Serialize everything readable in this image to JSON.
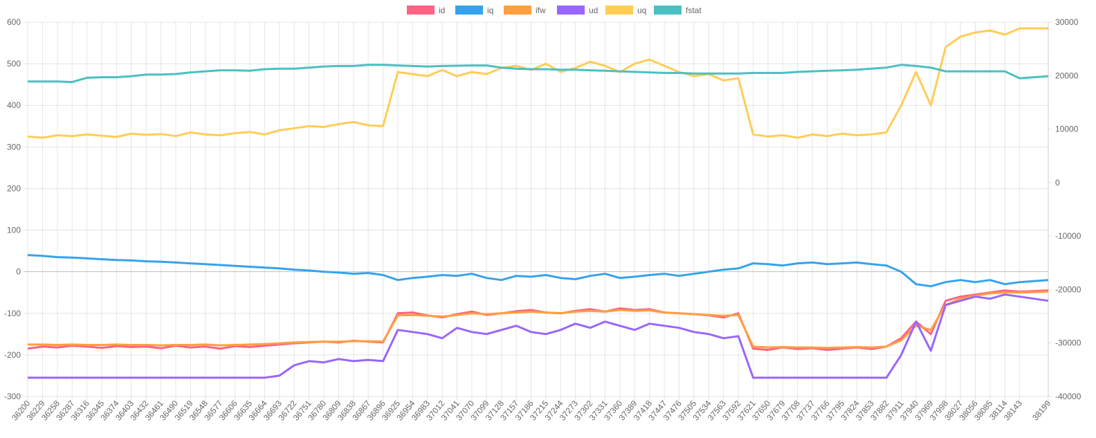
{
  "chart_data": {
    "type": "line",
    "title": "",
    "xlabel": "",
    "ylabel": "",
    "legend_position": "top",
    "grid": true,
    "x": [
      36200,
      36229,
      36258,
      36287,
      36316,
      36345,
      36374,
      36403,
      36432,
      36461,
      36490,
      36519,
      36548,
      36577,
      36606,
      36635,
      36664,
      36693,
      36722,
      36751,
      36780,
      36809,
      36838,
      36867,
      36896,
      36925,
      36954,
      36983,
      37012,
      37041,
      37070,
      37099,
      37128,
      37157,
      37186,
      37215,
      37244,
      37273,
      37302,
      37331,
      37360,
      37389,
      37418,
      37447,
      37476,
      37505,
      37534,
      37563,
      37592,
      37621,
      37650,
      37679,
      37708,
      37737,
      37766,
      37795,
      37824,
      37853,
      37882,
      37911,
      37940,
      37969,
      37998,
      38027,
      38056,
      38085,
      38114,
      38143,
      38199
    ],
    "y_left": {
      "min": -300,
      "max": 600,
      "ticks": [
        600,
        500,
        400,
        300,
        200,
        100,
        0,
        -100,
        -200,
        -300
      ]
    },
    "y_right": {
      "min": -40000,
      "max": 30000,
      "ticks": [
        30000,
        20000,
        10000,
        0,
        -10000,
        -20000,
        -30000,
        -40000
      ]
    },
    "series": [
      {
        "name": "id",
        "color": "#ff6384",
        "axis": "left",
        "values": [
          -185,
          -180,
          -182,
          -178,
          -180,
          -183,
          -179,
          -181,
          -180,
          -184,
          -178,
          -182,
          -180,
          -185,
          -179,
          -181,
          -178,
          -175,
          -172,
          -170,
          -168,
          -170,
          -166,
          -168,
          -170,
          -100,
          -98,
          -105,
          -110,
          -102,
          -96,
          -104,
          -100,
          -95,
          -92,
          -98,
          -100,
          -94,
          -90,
          -96,
          -88,
          -92,
          -90,
          -98,
          -100,
          -102,
          -105,
          -110,
          -100,
          -185,
          -188,
          -182,
          -186,
          -184,
          -188,
          -185,
          -182,
          -186,
          -180,
          -160,
          -120,
          -150,
          -70,
          -60,
          -55,
          -50,
          -45,
          -48,
          -45
        ]
      },
      {
        "name": "iq",
        "color": "#36a2eb",
        "axis": "left",
        "values": [
          40,
          38,
          35,
          34,
          32,
          30,
          28,
          27,
          25,
          24,
          22,
          20,
          18,
          16,
          14,
          12,
          10,
          8,
          5,
          3,
          0,
          -2,
          -5,
          -3,
          -8,
          -20,
          -15,
          -12,
          -8,
          -10,
          -5,
          -15,
          -20,
          -10,
          -12,
          -8,
          -15,
          -18,
          -10,
          -5,
          -15,
          -12,
          -8,
          -5,
          -10,
          -5,
          0,
          5,
          8,
          20,
          18,
          15,
          20,
          22,
          18,
          20,
          22,
          18,
          15,
          0,
          -30,
          -35,
          -25,
          -20,
          -25,
          -20,
          -30,
          -25,
          -20
        ]
      },
      {
        "name": "ifw",
        "color": "#ff9f40",
        "axis": "left",
        "values": [
          -175,
          -175,
          -176,
          -175,
          -176,
          -176,
          -175,
          -176,
          -176,
          -177,
          -176,
          -176,
          -175,
          -177,
          -176,
          -175,
          -174,
          -172,
          -170,
          -169,
          -168,
          -168,
          -167,
          -167,
          -168,
          -105,
          -104,
          -106,
          -108,
          -104,
          -100,
          -102,
          -100,
          -98,
          -96,
          -98,
          -100,
          -96,
          -94,
          -96,
          -92,
          -94,
          -93,
          -98,
          -100,
          -102,
          -104,
          -106,
          -104,
          -180,
          -182,
          -181,
          -182,
          -182,
          -183,
          -182,
          -181,
          -182,
          -180,
          -165,
          -130,
          -140,
          -80,
          -65,
          -58,
          -52,
          -50,
          -50,
          -48
        ]
      },
      {
        "name": "ud",
        "color": "#9966ff",
        "axis": "left",
        "values": [
          -255,
          -255,
          -255,
          -255,
          -255,
          -255,
          -255,
          -255,
          -255,
          -255,
          -255,
          -255,
          -255,
          -255,
          -255,
          -255,
          -255,
          -250,
          -225,
          -215,
          -218,
          -210,
          -215,
          -212,
          -215,
          -140,
          -145,
          -150,
          -160,
          -135,
          -145,
          -150,
          -140,
          -130,
          -145,
          -150,
          -140,
          -125,
          -135,
          -120,
          -130,
          -140,
          -125,
          -130,
          -135,
          -145,
          -150,
          -160,
          -155,
          -255,
          -255,
          -255,
          -255,
          -255,
          -255,
          -255,
          -255,
          -255,
          -255,
          -200,
          -120,
          -190,
          -80,
          -70,
          -60,
          -65,
          -55,
          -60,
          -70
        ]
      },
      {
        "name": "uq",
        "color": "#ffcd56",
        "axis": "left",
        "values": [
          325,
          322,
          328,
          326,
          330,
          327,
          324,
          332,
          329,
          331,
          326,
          335,
          330,
          328,
          333,
          336,
          330,
          340,
          345,
          350,
          348,
          355,
          360,
          352,
          350,
          480,
          475,
          470,
          485,
          470,
          480,
          475,
          490,
          495,
          485,
          500,
          480,
          490,
          505,
          495,
          480,
          500,
          510,
          495,
          480,
          470,
          475,
          460,
          465,
          330,
          325,
          328,
          322,
          330,
          326,
          332,
          328,
          330,
          335,
          400,
          480,
          400,
          540,
          565,
          575,
          580,
          570,
          585,
          585
        ]
      },
      {
        "name": "fstat",
        "color": "#4bc0c0",
        "axis": "right",
        "values": [
          18900,
          18900,
          18900,
          18800,
          19600,
          19700,
          19700,
          19900,
          20200,
          20200,
          20300,
          20600,
          20800,
          21000,
          21000,
          20900,
          21200,
          21300,
          21300,
          21500,
          21700,
          21800,
          21800,
          22000,
          22000,
          21900,
          21800,
          21700,
          21800,
          21850,
          21900,
          21900,
          21500,
          21300,
          21200,
          21200,
          21100,
          21100,
          21000,
          20900,
          20800,
          20700,
          20600,
          20500,
          20500,
          20400,
          20400,
          20400,
          20400,
          20500,
          20500,
          20500,
          20700,
          20800,
          20900,
          21000,
          21100,
          21300,
          21500,
          22000,
          21800,
          21500,
          20800,
          20800,
          20800,
          20800,
          20800,
          19500,
          19900
        ]
      }
    ]
  }
}
